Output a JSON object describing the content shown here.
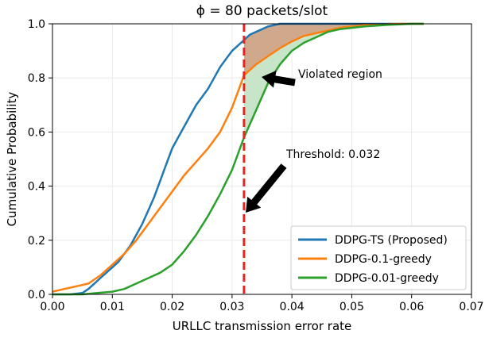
{
  "chart_data": {
    "type": "line",
    "title": "ϕ = 80 packets/slot",
    "xlabel": "URLLC transmission error rate",
    "ylabel": "Cumulative Probability",
    "xlim": [
      0.0,
      0.07
    ],
    "ylim": [
      0.0,
      1.0
    ],
    "xticks": [
      "0.00",
      "0.01",
      "0.02",
      "0.03",
      "0.04",
      "0.05",
      "0.06",
      "0.07"
    ],
    "yticks": [
      "0.0",
      "0.2",
      "0.4",
      "0.6",
      "0.8",
      "1.0"
    ],
    "grid": true,
    "legend_position": "lower-right",
    "series": [
      {
        "name": "DDPG-TS (Proposed)",
        "color": "#1f77b4",
        "x": [
          0.0,
          0.003,
          0.005,
          0.006,
          0.007,
          0.008,
          0.009,
          0.01,
          0.011,
          0.012,
          0.013,
          0.014,
          0.015,
          0.016,
          0.017,
          0.018,
          0.019,
          0.02,
          0.021,
          0.022,
          0.023,
          0.024,
          0.025,
          0.026,
          0.027,
          0.028,
          0.029,
          0.03,
          0.031,
          0.032,
          0.033,
          0.034,
          0.035,
          0.036,
          0.037,
          0.038,
          0.039,
          0.04,
          0.045,
          0.05,
          0.055,
          0.06,
          0.062
        ],
        "y": [
          0.0,
          0.0,
          0.005,
          0.02,
          0.04,
          0.06,
          0.08,
          0.1,
          0.12,
          0.15,
          0.18,
          0.22,
          0.26,
          0.31,
          0.36,
          0.42,
          0.48,
          0.54,
          0.58,
          0.62,
          0.66,
          0.7,
          0.73,
          0.76,
          0.8,
          0.84,
          0.87,
          0.9,
          0.92,
          0.94,
          0.96,
          0.97,
          0.98,
          0.99,
          0.995,
          1.0,
          1.0,
          1.0,
          1.0,
          1.0,
          1.0,
          1.0,
          1.0
        ]
      },
      {
        "name": "DDPG-0.1-greedy",
        "color": "#ff7f0e",
        "x": [
          0.0,
          0.002,
          0.004,
          0.006,
          0.008,
          0.01,
          0.012,
          0.014,
          0.016,
          0.018,
          0.02,
          0.022,
          0.024,
          0.026,
          0.028,
          0.03,
          0.032,
          0.034,
          0.036,
          0.038,
          0.04,
          0.042,
          0.044,
          0.046,
          0.048,
          0.05,
          0.052,
          0.055,
          0.058,
          0.06,
          0.062
        ],
        "y": [
          0.01,
          0.02,
          0.03,
          0.04,
          0.07,
          0.11,
          0.15,
          0.2,
          0.26,
          0.32,
          0.38,
          0.44,
          0.49,
          0.54,
          0.6,
          0.69,
          0.81,
          0.85,
          0.88,
          0.91,
          0.935,
          0.955,
          0.965,
          0.975,
          0.985,
          0.99,
          0.995,
          0.998,
          1.0,
          1.0,
          1.0
        ]
      },
      {
        "name": "DDPG-0.01-greedy",
        "color": "#2ca02c",
        "x": [
          0.0,
          0.005,
          0.01,
          0.012,
          0.014,
          0.016,
          0.018,
          0.02,
          0.022,
          0.024,
          0.026,
          0.028,
          0.03,
          0.031,
          0.032,
          0.034,
          0.036,
          0.038,
          0.04,
          0.042,
          0.044,
          0.046,
          0.048,
          0.05,
          0.052,
          0.054,
          0.056,
          0.058,
          0.06,
          0.062
        ],
        "y": [
          0.0,
          0.0,
          0.01,
          0.02,
          0.04,
          0.06,
          0.08,
          0.11,
          0.16,
          0.22,
          0.29,
          0.37,
          0.46,
          0.52,
          0.58,
          0.68,
          0.78,
          0.85,
          0.9,
          0.93,
          0.95,
          0.97,
          0.98,
          0.985,
          0.99,
          0.993,
          0.996,
          0.998,
          1.0,
          1.0
        ]
      }
    ],
    "threshold": {
      "x": 0.032,
      "color": "#e8221c"
    },
    "annotations": [
      {
        "id": "violated",
        "text": "Violated region"
      },
      {
        "id": "threshold",
        "text": "Threshold: 0.032"
      }
    ],
    "fill_colors": {
      "orange_region": "#c89a78",
      "green_region": "#bfe0bf"
    }
  }
}
